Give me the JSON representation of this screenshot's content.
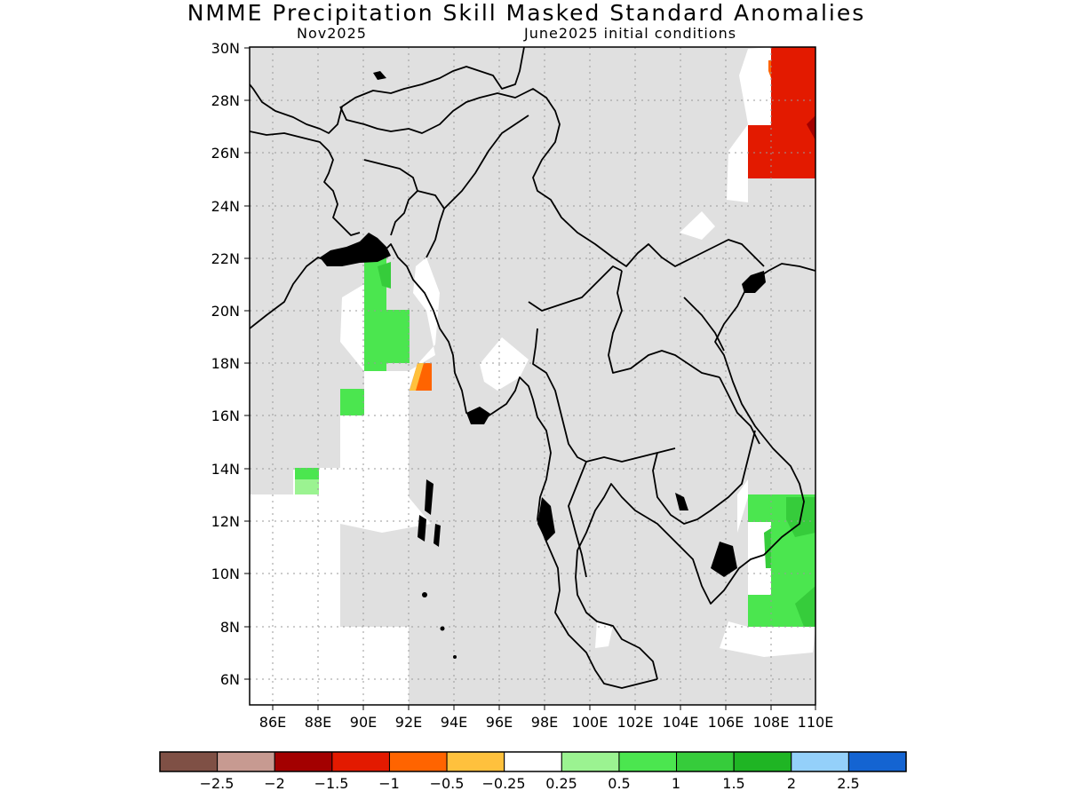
{
  "title": "NMME Precipitation Skill Masked Standard Anomalies",
  "subtitle_left": "Nov2025",
  "subtitle_right": "June2025 initial conditions",
  "lat_ticks": [
    "30N",
    "28N",
    "26N",
    "24N",
    "22N",
    "20N",
    "18N",
    "16N",
    "14N",
    "12N",
    "10N",
    "8N",
    "6N"
  ],
  "lon_ticks": [
    "86E",
    "88E",
    "90E",
    "92E",
    "94E",
    "96E",
    "98E",
    "100E",
    "102E",
    "104E",
    "106E",
    "108E",
    "110E"
  ],
  "map_extent": {
    "lon_min": 85,
    "lon_max": 110,
    "lat_min": 5,
    "lat_max": 30
  },
  "colorbar": {
    "colors": [
      "#7f5045",
      "#c79a91",
      "#a30000",
      "#e31a00",
      "#ff6400",
      "#ffc13d",
      "#ffffff",
      "#9bf391",
      "#4be64f",
      "#36cc3b",
      "#1fb524",
      "#94d0fa",
      "#1464d2"
    ],
    "labels": [
      "−2.5",
      "−2",
      "−1.5",
      "−1",
      "−0.5",
      "−0.25",
      "0.25",
      "0.5",
      "1",
      "1.5",
      "2",
      "2.5"
    ]
  },
  "colors": {
    "masked": "#e0e0e0",
    "coast": "#000000"
  }
}
